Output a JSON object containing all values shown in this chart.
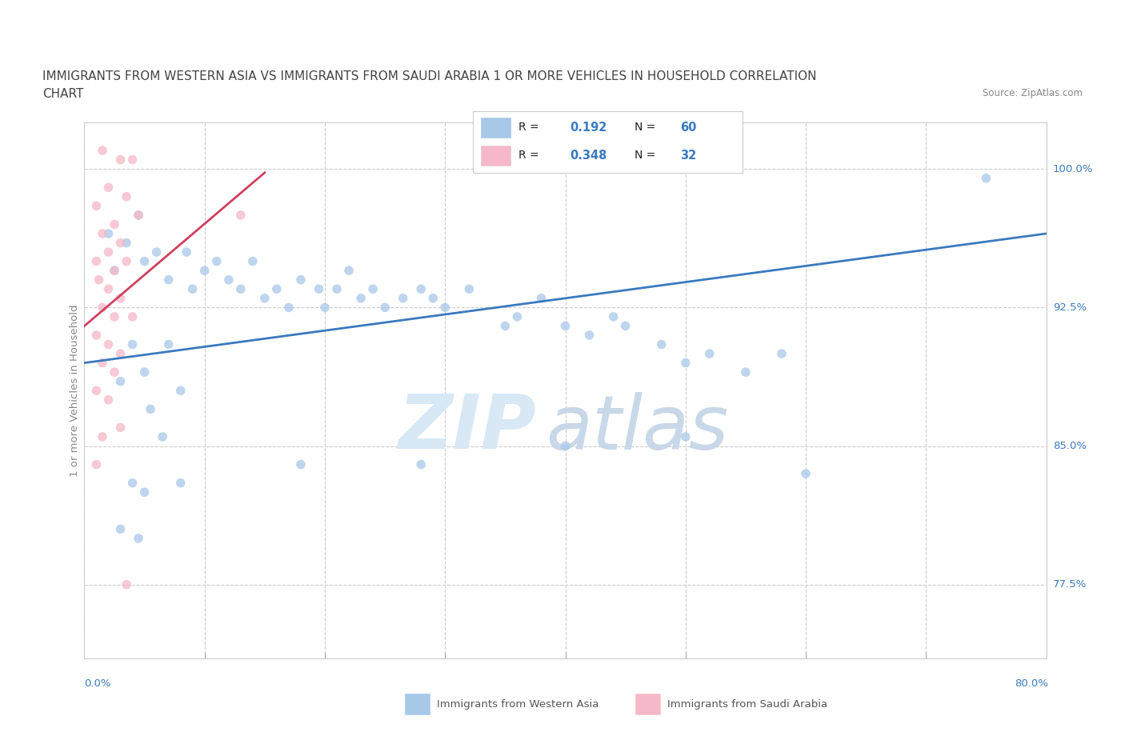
{
  "title_line1": "IMMIGRANTS FROM WESTERN ASIA VS IMMIGRANTS FROM SAUDI ARABIA 1 OR MORE VEHICLES IN HOUSEHOLD CORRELATION",
  "title_line2": "CHART",
  "source": "Source: ZipAtlas.com",
  "xmin": 0.0,
  "xmax": 80.0,
  "ymin": 73.5,
  "ymax": 102.5,
  "legend_blue_r": "0.192",
  "legend_blue_n": "60",
  "legend_pink_r": "0.348",
  "legend_pink_n": "32",
  "color_blue": "#a8c8e8",
  "color_pink": "#f5b8c8",
  "color_line_blue": "#3a7abf",
  "color_line_pink": "#d04060",
  "watermark_zip": "ZIP",
  "watermark_atlas": "atlas",
  "blue_line_x0": 0.0,
  "blue_line_y0": 89.5,
  "blue_line_x1": 80.0,
  "blue_line_y1": 96.5,
  "pink_line_x0": 0.0,
  "pink_line_y0": 91.5,
  "pink_line_x1": 15.0,
  "pink_line_y1": 99.8,
  "yticks": [
    77.5,
    85.0,
    92.5,
    100.0
  ],
  "ytick_labels": [
    "77.5%",
    "85.0%",
    "92.5%",
    "100.0%"
  ],
  "xtick_positions": [
    0,
    10,
    20,
    30,
    40,
    50,
    60,
    70,
    80
  ],
  "blue_dots": [
    [
      2.0,
      96.5
    ],
    [
      3.5,
      96.0
    ],
    [
      4.5,
      97.5
    ],
    [
      2.5,
      94.5
    ],
    [
      5.0,
      95.0
    ],
    [
      6.0,
      95.5
    ],
    [
      7.0,
      94.0
    ],
    [
      8.5,
      95.5
    ],
    [
      9.0,
      93.5
    ],
    [
      10.0,
      94.5
    ],
    [
      11.0,
      95.0
    ],
    [
      12.0,
      94.0
    ],
    [
      13.0,
      93.5
    ],
    [
      14.0,
      95.0
    ],
    [
      15.0,
      93.0
    ],
    [
      16.0,
      93.5
    ],
    [
      17.0,
      92.5
    ],
    [
      18.0,
      94.0
    ],
    [
      19.5,
      93.5
    ],
    [
      20.0,
      92.5
    ],
    [
      21.0,
      93.5
    ],
    [
      22.0,
      94.5
    ],
    [
      23.0,
      93.0
    ],
    [
      24.0,
      93.5
    ],
    [
      25.0,
      92.5
    ],
    [
      26.5,
      93.0
    ],
    [
      28.0,
      93.5
    ],
    [
      29.0,
      93.0
    ],
    [
      30.0,
      92.5
    ],
    [
      32.0,
      93.5
    ],
    [
      35.0,
      91.5
    ],
    [
      36.0,
      92.0
    ],
    [
      38.0,
      93.0
    ],
    [
      40.0,
      91.5
    ],
    [
      42.0,
      91.0
    ],
    [
      44.0,
      92.0
    ],
    [
      45.0,
      91.5
    ],
    [
      48.0,
      90.5
    ],
    [
      50.0,
      89.5
    ],
    [
      52.0,
      90.0
    ],
    [
      55.0,
      89.0
    ],
    [
      58.0,
      90.0
    ],
    [
      4.0,
      90.5
    ],
    [
      5.0,
      89.0
    ],
    [
      7.0,
      90.5
    ],
    [
      8.0,
      88.0
    ],
    [
      3.0,
      88.5
    ],
    [
      5.5,
      87.0
    ],
    [
      6.5,
      85.5
    ],
    [
      4.0,
      83.0
    ],
    [
      5.0,
      82.5
    ],
    [
      8.0,
      83.0
    ],
    [
      4.5,
      80.0
    ],
    [
      3.0,
      80.5
    ],
    [
      18.0,
      84.0
    ],
    [
      28.0,
      84.0
    ],
    [
      40.0,
      85.0
    ],
    [
      50.0,
      85.5
    ],
    [
      60.0,
      83.5
    ],
    [
      75.0,
      99.5
    ]
  ],
  "pink_dots": [
    [
      1.5,
      101.0
    ],
    [
      3.0,
      100.5
    ],
    [
      4.0,
      100.5
    ],
    [
      2.0,
      99.0
    ],
    [
      3.5,
      98.5
    ],
    [
      1.0,
      98.0
    ],
    [
      2.5,
      97.0
    ],
    [
      4.5,
      97.5
    ],
    [
      1.5,
      96.5
    ],
    [
      3.0,
      96.0
    ],
    [
      2.0,
      95.5
    ],
    [
      1.0,
      95.0
    ],
    [
      3.5,
      95.0
    ],
    [
      2.5,
      94.5
    ],
    [
      1.2,
      94.0
    ],
    [
      2.0,
      93.5
    ],
    [
      3.0,
      93.0
    ],
    [
      1.5,
      92.5
    ],
    [
      2.5,
      92.0
    ],
    [
      4.0,
      92.0
    ],
    [
      1.0,
      91.0
    ],
    [
      2.0,
      90.5
    ],
    [
      3.0,
      90.0
    ],
    [
      1.5,
      89.5
    ],
    [
      2.5,
      89.0
    ],
    [
      1.0,
      88.0
    ],
    [
      2.0,
      87.5
    ],
    [
      3.0,
      86.0
    ],
    [
      1.5,
      85.5
    ],
    [
      1.0,
      84.0
    ],
    [
      3.5,
      77.5
    ],
    [
      13.0,
      97.5
    ]
  ]
}
